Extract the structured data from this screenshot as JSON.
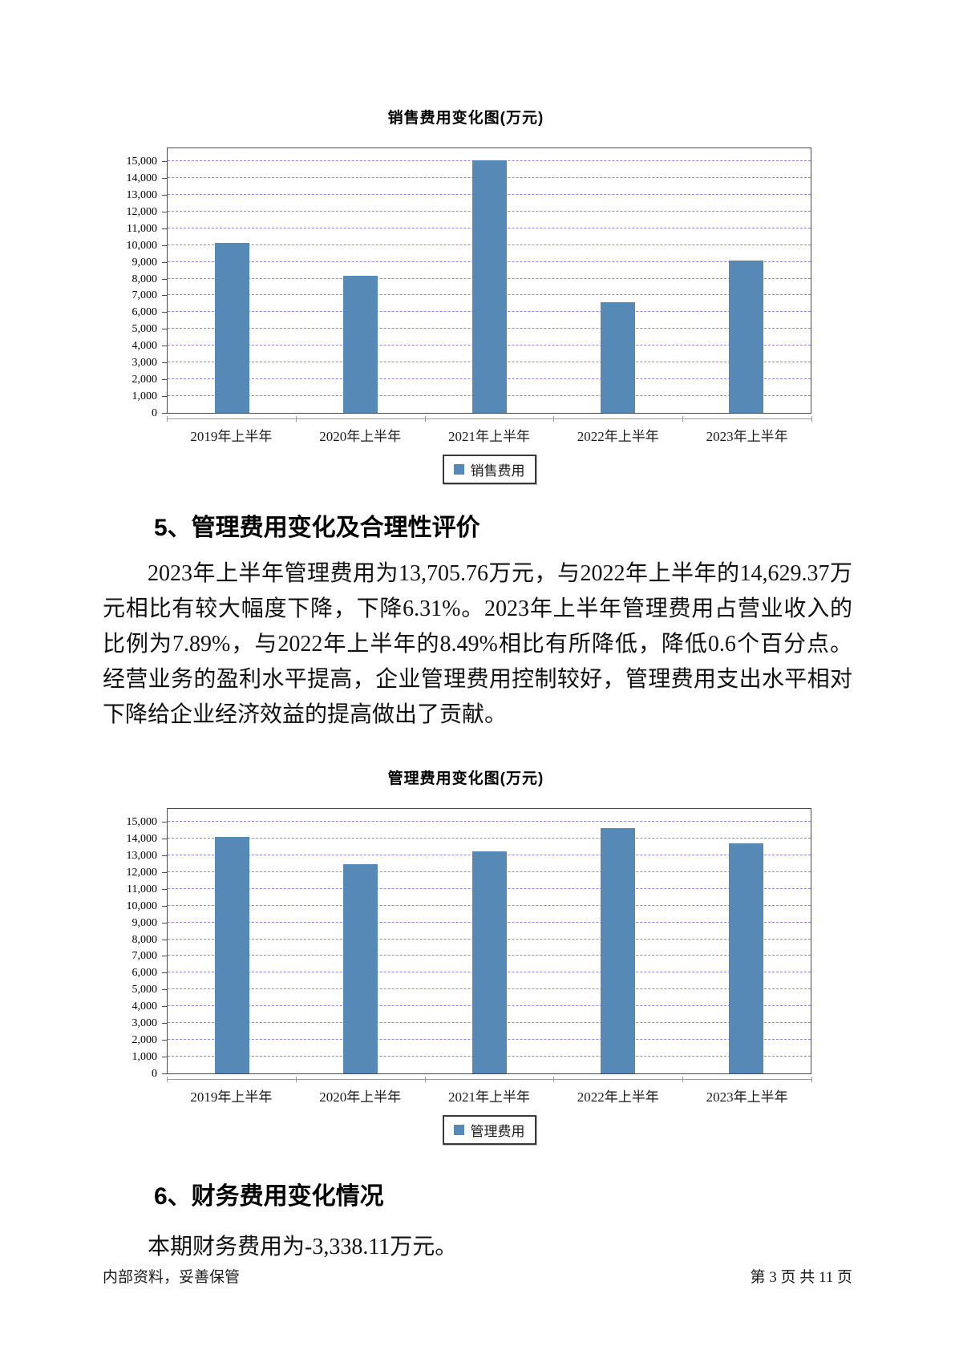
{
  "document": {
    "sections": [
      {
        "heading": "5、管理费用变化及合理性评价",
        "paragraph": "2023年上半年管理费用为13,705.76万元，与2022年上半年的14,629.37万元相比有较大幅度下降，下降6.31%。2023年上半年管理费用占营业收入的比例为7.89%，与2022年上半年的8.49%相比有所降低，降低0.6个百分点。经营业务的盈利水平提高，企业管理费用控制较好，管理费用支出水平相对下降给企业经济效益的提高做出了贡献。"
      },
      {
        "heading": "6、财务费用变化情况",
        "paragraph": "本期财务费用为-3,338.11万元。"
      }
    ],
    "footer": {
      "left": "内部资料，妥善保管",
      "right": "第 3 页  共 11 页"
    }
  },
  "chart_data": [
    {
      "type": "bar",
      "title": "销售费用变化图(万元)",
      "categories": [
        "2019年上半年",
        "2020年上半年",
        "2021年上半年",
        "2022年上半年",
        "2023年上半年"
      ],
      "series": [
        {
          "name": "销售费用",
          "values": [
            10150,
            8150,
            15050,
            6600,
            9100
          ]
        }
      ],
      "xlabel": "",
      "ylabel": "",
      "ylim": [
        0,
        15000
      ],
      "ytick_interval": 1000,
      "ytick_labels": [
        "0",
        "1,000",
        "2,000",
        "3,000",
        "4,000",
        "5,000",
        "6,000",
        "7,000",
        "8,000",
        "9,000",
        "10,000",
        "11,000",
        "12,000",
        "13,000",
        "14,000",
        "15,000"
      ],
      "grid": true,
      "gridline_style": "dashed",
      "legend_position": "bottom",
      "bar_color": "#5789b7",
      "gridline_color": "#8888e0"
    },
    {
      "type": "bar",
      "title": "管理费用变化图(万元)",
      "categories": [
        "2019年上半年",
        "2020年上半年",
        "2021年上半年",
        "2022年上半年",
        "2023年上半年"
      ],
      "series": [
        {
          "name": "管理费用",
          "values": [
            14100,
            12450,
            13250,
            14629.37,
            13705.76
          ]
        }
      ],
      "xlabel": "",
      "ylabel": "",
      "ylim": [
        0,
        15000
      ],
      "ytick_interval": 1000,
      "ytick_labels": [
        "0",
        "1,000",
        "2,000",
        "3,000",
        "4,000",
        "5,000",
        "6,000",
        "7,000",
        "8,000",
        "9,000",
        "10,000",
        "11,000",
        "12,000",
        "13,000",
        "14,000",
        "15,000"
      ],
      "grid": true,
      "gridline_style": "dashed",
      "legend_position": "bottom",
      "bar_color": "#5789b7",
      "gridline_color": "#8888e0"
    }
  ]
}
